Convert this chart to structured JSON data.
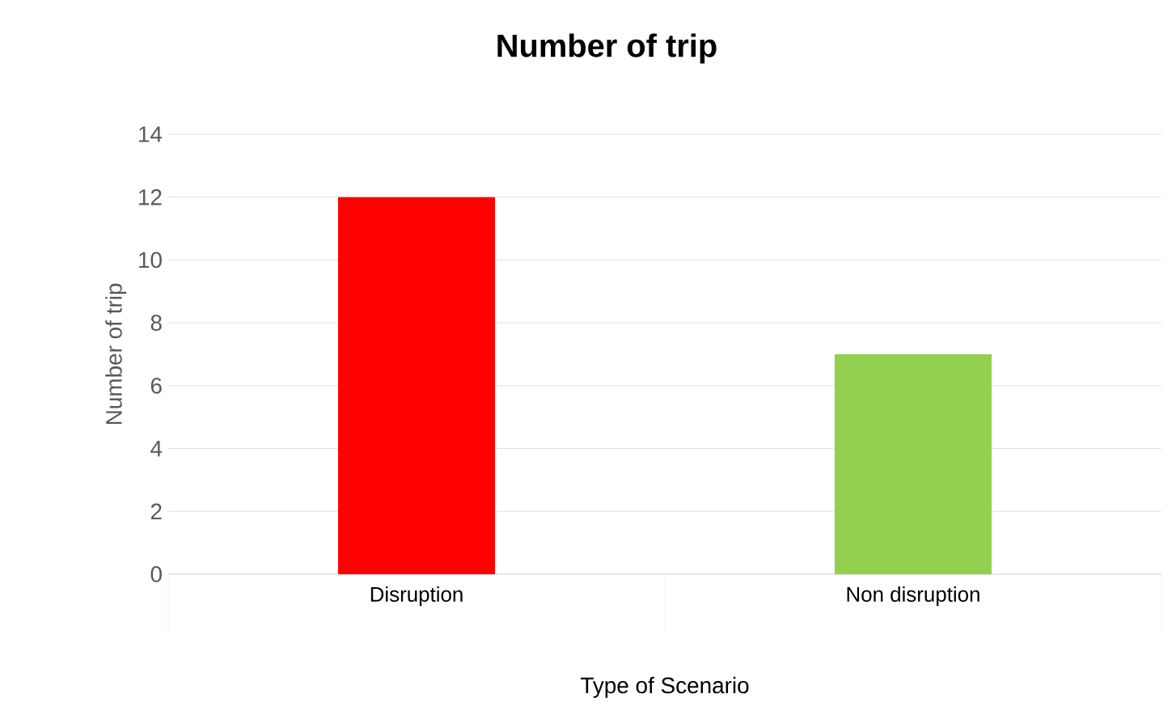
{
  "chart_data": {
    "type": "bar",
    "title": "Number of trip",
    "xlabel": "Type of Scenario",
    "ylabel": "Number of trip",
    "categories": [
      "Disruption",
      "Non disruption"
    ],
    "values": [
      12,
      7
    ],
    "colors": [
      "#ff0000",
      "#92d050"
    ],
    "ylim": [
      0,
      14
    ],
    "yticks": [
      0,
      2,
      4,
      6,
      8,
      10,
      12,
      14
    ],
    "grid": "y"
  }
}
